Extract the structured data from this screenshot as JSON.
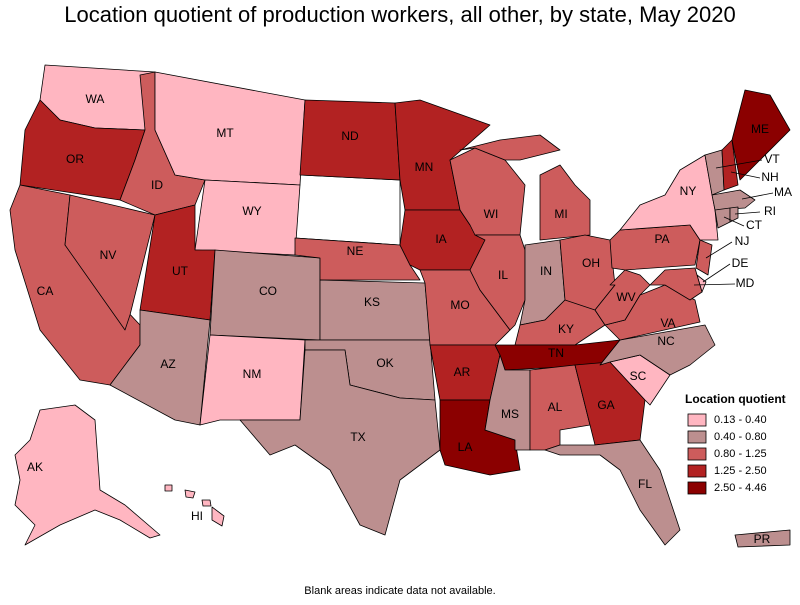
{
  "title": "Location quotient of production workers, all other, by state, May 2020",
  "note": "Blank areas indicate data not available.",
  "legend": {
    "title": "Location quotient",
    "classes": [
      {
        "label": "0.13 - 0.40",
        "color": "#ffb6c1"
      },
      {
        "label": "0.40 - 0.80",
        "color": "#bc8f8f"
      },
      {
        "label": "0.80 - 1.25",
        "color": "#cd5c5c"
      },
      {
        "label": "1.25 - 2.50",
        "color": "#b22222"
      },
      {
        "label": "2.50 - 4.46",
        "color": "#8b0000"
      }
    ]
  },
  "states": [
    {
      "abbr": "WA",
      "class": 0
    },
    {
      "abbr": "OR",
      "class": 3
    },
    {
      "abbr": "CA",
      "class": 2
    },
    {
      "abbr": "NV",
      "class": 2
    },
    {
      "abbr": "ID",
      "class": 2
    },
    {
      "abbr": "MT",
      "class": 0
    },
    {
      "abbr": "WY",
      "class": 0
    },
    {
      "abbr": "UT",
      "class": 3
    },
    {
      "abbr": "AZ",
      "class": 1
    },
    {
      "abbr": "CO",
      "class": 1
    },
    {
      "abbr": "NM",
      "class": 0
    },
    {
      "abbr": "ND",
      "class": 3
    },
    {
      "abbr": "NE",
      "class": 2
    },
    {
      "abbr": "KS",
      "class": 1
    },
    {
      "abbr": "OK",
      "class": 1
    },
    {
      "abbr": "TX",
      "class": 1
    },
    {
      "abbr": "MN",
      "class": 3
    },
    {
      "abbr": "IA",
      "class": 3
    },
    {
      "abbr": "MO",
      "class": 2
    },
    {
      "abbr": "AR",
      "class": 3
    },
    {
      "abbr": "LA",
      "class": 4
    },
    {
      "abbr": "WI",
      "class": 2
    },
    {
      "abbr": "IL",
      "class": 2
    },
    {
      "abbr": "MI",
      "class": 2
    },
    {
      "abbr": "IN",
      "class": 1
    },
    {
      "abbr": "OH",
      "class": 2
    },
    {
      "abbr": "KY",
      "class": 2
    },
    {
      "abbr": "TN",
      "class": 4
    },
    {
      "abbr": "MS",
      "class": 1
    },
    {
      "abbr": "AL",
      "class": 2
    },
    {
      "abbr": "GA",
      "class": 3
    },
    {
      "abbr": "FL",
      "class": 1
    },
    {
      "abbr": "SC",
      "class": 0
    },
    {
      "abbr": "NC",
      "class": 1
    },
    {
      "abbr": "VA",
      "class": 2
    },
    {
      "abbr": "WV",
      "class": 2
    },
    {
      "abbr": "PA",
      "class": 2
    },
    {
      "abbr": "NY",
      "class": 0
    },
    {
      "abbr": "NJ",
      "class": 2
    },
    {
      "abbr": "DE",
      "class": 0
    },
    {
      "abbr": "MD",
      "class": 2
    },
    {
      "abbr": "VT",
      "class": 1
    },
    {
      "abbr": "NH",
      "class": 3
    },
    {
      "abbr": "ME",
      "class": 4
    },
    {
      "abbr": "MA",
      "class": 1
    },
    {
      "abbr": "CT",
      "class": 1
    },
    {
      "abbr": "RI",
      "class": 1
    },
    {
      "abbr": "AK",
      "class": 0
    },
    {
      "abbr": "HI",
      "class": 0
    },
    {
      "abbr": "PR",
      "class": 1
    }
  ]
}
